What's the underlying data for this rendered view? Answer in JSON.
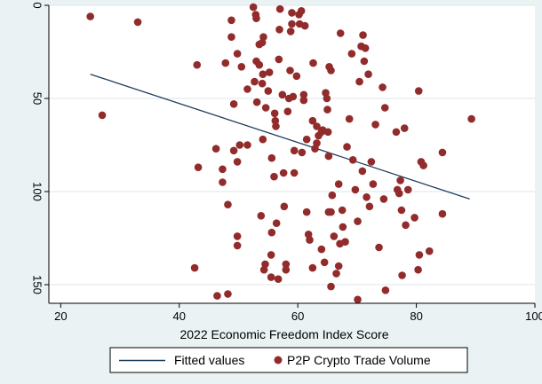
{
  "colors": {
    "background": "#eaf2f3",
    "plot_background": "#ffffff",
    "grid": "#dfe6ea",
    "marker": "#922b2b",
    "fit_line": "#1e3e5c",
    "axis": "#000000"
  },
  "chart_data": {
    "type": "scatter",
    "xlabel": "2022 Economic Freedom Index Score",
    "ylabel": "",
    "xlim": [
      18,
      100
    ],
    "ylim": [
      0,
      160
    ],
    "y_reversed": true,
    "xticks": [
      20,
      40,
      60,
      80,
      100
    ],
    "yticks": [
      0,
      50,
      100,
      150
    ],
    "grid": "horizontal",
    "legend_position": "bottom",
    "series": [
      {
        "name": "Fitted values",
        "kind": "line",
        "points": [
          [
            25,
            37
          ],
          [
            89,
            104
          ]
        ]
      },
      {
        "name": "P2P Crypto Trade Volume",
        "kind": "scatter",
        "points": [
          [
            25,
            6
          ],
          [
            27,
            59
          ],
          [
            33,
            9
          ],
          [
            43,
            32
          ],
          [
            43.2,
            87
          ],
          [
            42.6,
            141
          ],
          [
            46.2,
            77
          ],
          [
            47.3,
            88
          ],
          [
            47.3,
            95
          ],
          [
            48.2,
            107
          ],
          [
            48.2,
            155
          ],
          [
            46.4,
            156
          ],
          [
            48.8,
            8
          ],
          [
            48.8,
            17
          ],
          [
            49.2,
            78
          ],
          [
            49.8,
            84
          ],
          [
            49.8,
            124
          ],
          [
            49.8,
            129
          ],
          [
            49.2,
            53
          ],
          [
            47.8,
            31
          ],
          [
            49.8,
            26
          ],
          [
            50.5,
            33
          ],
          [
            50.2,
            75
          ],
          [
            51.5,
            45
          ],
          [
            51.5,
            75
          ],
          [
            52.5,
            1
          ],
          [
            52.7,
            41
          ],
          [
            52.9,
            5
          ],
          [
            53,
            7
          ],
          [
            53.1,
            52
          ],
          [
            53,
            30
          ],
          [
            53.5,
            21
          ],
          [
            53.5,
            32
          ],
          [
            53.8,
            113
          ],
          [
            54.1,
            37
          ],
          [
            54,
            42
          ],
          [
            54.1,
            72
          ],
          [
            54.2,
            17
          ],
          [
            54,
            20
          ],
          [
            54.6,
            55
          ],
          [
            54.3,
            142
          ],
          [
            54.5,
            139
          ],
          [
            55.2,
            36
          ],
          [
            55,
            46
          ],
          [
            55.6,
            82
          ],
          [
            56,
            92
          ],
          [
            55.6,
            122
          ],
          [
            55.5,
            134
          ],
          [
            55.5,
            146
          ],
          [
            56.1,
            58
          ],
          [
            56.2,
            62
          ],
          [
            56.3,
            65
          ],
          [
            56.4,
            117
          ],
          [
            56.7,
            147
          ],
          [
            56.9,
            13
          ],
          [
            56.8,
            29
          ],
          [
            57,
            2
          ],
          [
            57.4,
            48
          ],
          [
            57.6,
            90
          ],
          [
            57.7,
            108
          ],
          [
            58,
            142
          ],
          [
            58,
            139
          ],
          [
            58.3,
            57
          ],
          [
            58.5,
            50
          ],
          [
            58.8,
            14
          ],
          [
            58.7,
            35
          ],
          [
            59,
            10
          ],
          [
            59,
            4
          ],
          [
            59.2,
            49
          ],
          [
            59.4,
            78
          ],
          [
            59.4,
            90
          ],
          [
            59.8,
            38
          ],
          [
            60.2,
            5
          ],
          [
            60.6,
            3
          ],
          [
            60.3,
            10
          ],
          [
            60.7,
            79
          ],
          [
            61,
            48
          ],
          [
            61,
            51
          ],
          [
            61.2,
            11
          ],
          [
            61.5,
            72
          ],
          [
            61.5,
            111
          ],
          [
            61.8,
            123
          ],
          [
            62,
            126
          ],
          [
            62.5,
            62
          ],
          [
            62.6,
            31
          ],
          [
            62.5,
            141
          ],
          [
            62.9,
            77
          ],
          [
            63.2,
            65
          ],
          [
            63.2,
            74
          ],
          [
            63.5,
            70
          ],
          [
            64,
            68
          ],
          [
            64.2,
            67
          ],
          [
            64,
            131
          ],
          [
            64.5,
            138
          ],
          [
            64.7,
            47
          ],
          [
            64.9,
            50
          ],
          [
            65,
            56
          ],
          [
            65.1,
            68
          ],
          [
            65.2,
            81
          ],
          [
            65.3,
            33
          ],
          [
            65.6,
            35
          ],
          [
            65.6,
            111
          ],
          [
            65.6,
            151
          ],
          [
            65.2,
            111
          ],
          [
            65.8,
            102
          ],
          [
            66.1,
            124
          ],
          [
            66.5,
            144
          ],
          [
            66.9,
            96
          ],
          [
            66.9,
            140
          ],
          [
            67.1,
            128
          ],
          [
            67.2,
            15
          ],
          [
            67.5,
            110
          ],
          [
            67.6,
            119
          ],
          [
            68,
            127
          ],
          [
            68.3,
            76
          ],
          [
            68.7,
            61
          ],
          [
            69.1,
            26
          ],
          [
            69.3,
            83
          ],
          [
            69.7,
            99
          ],
          [
            70.1,
            116
          ],
          [
            70.1,
            158
          ],
          [
            70.4,
            41
          ],
          [
            70.7,
            22
          ],
          [
            70.9,
            89
          ],
          [
            71,
            16
          ],
          [
            71.2,
            30
          ],
          [
            71.4,
            23
          ],
          [
            71.6,
            103
          ],
          [
            71.9,
            37
          ],
          [
            72.1,
            108
          ],
          [
            72.4,
            84
          ],
          [
            72.7,
            96
          ],
          [
            73.1,
            64
          ],
          [
            73.7,
            130
          ],
          [
            74.3,
            44
          ],
          [
            74.5,
            104
          ],
          [
            74.7,
            55
          ],
          [
            74.8,
            153
          ],
          [
            76.6,
            68
          ],
          [
            76.8,
            99
          ],
          [
            77.1,
            101
          ],
          [
            77.3,
            94
          ],
          [
            77.5,
            110
          ],
          [
            77.6,
            145
          ],
          [
            78,
            66
          ],
          [
            78.2,
            118
          ],
          [
            78.6,
            99
          ],
          [
            79.7,
            114
          ],
          [
            80.3,
            142
          ],
          [
            80.5,
            134
          ],
          [
            80.4,
            46
          ],
          [
            80.8,
            84
          ],
          [
            81.2,
            86
          ],
          [
            82.2,
            132
          ],
          [
            84.4,
            112
          ],
          [
            84.4,
            79
          ],
          [
            89.3,
            61
          ]
        ]
      }
    ]
  }
}
